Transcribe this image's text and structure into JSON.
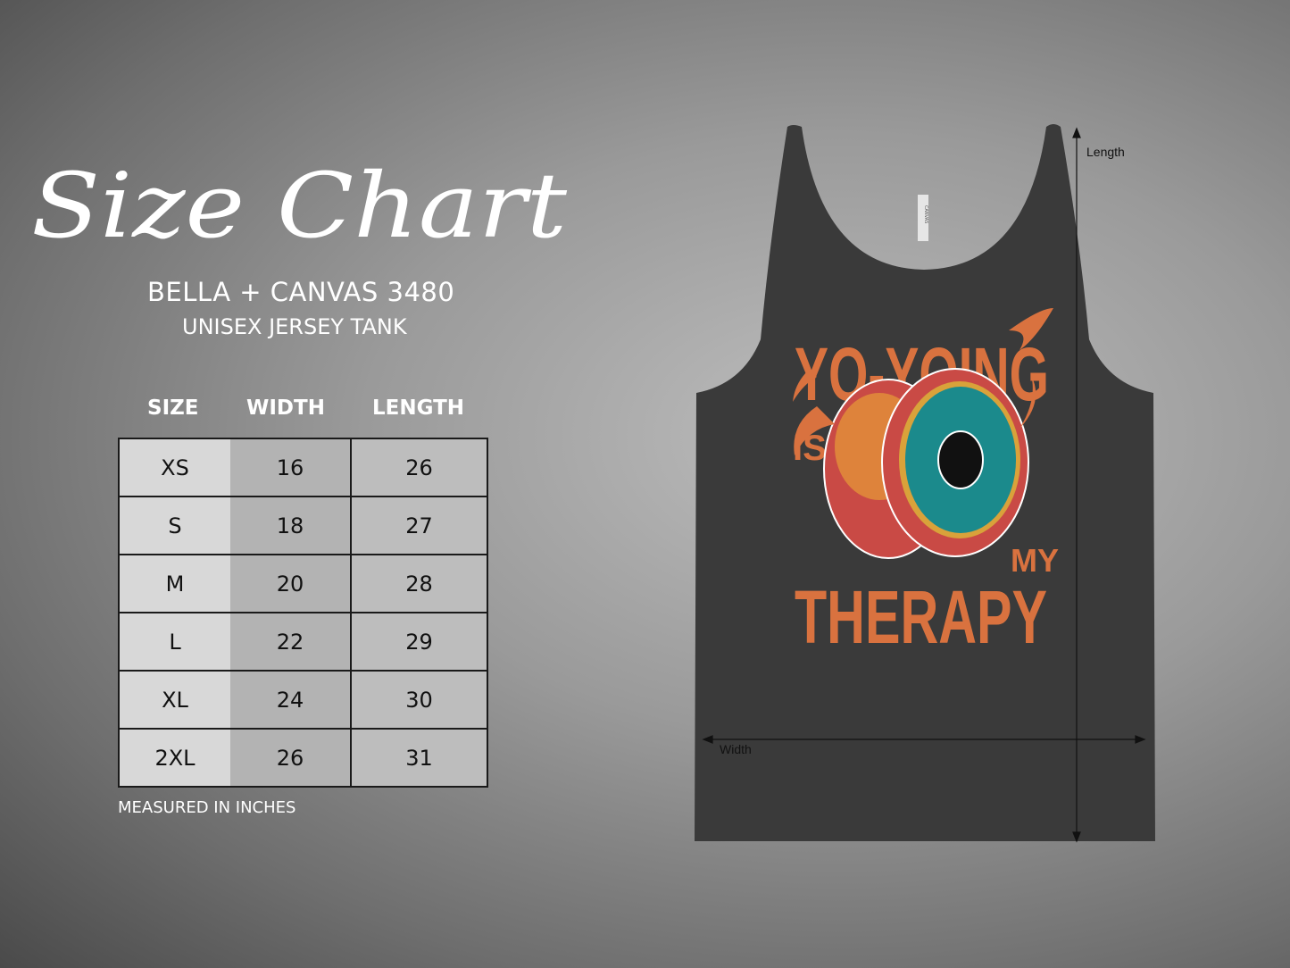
{
  "header": {
    "script_title": "Size Chart",
    "brand_model": "BELLA + CANVAS 3480",
    "product_type": "UNISEX JERSEY TANK"
  },
  "table": {
    "columns": [
      "SIZE",
      "WIDTH",
      "LENGTH"
    ],
    "rows": [
      [
        "XS",
        "16",
        "26"
      ],
      [
        "S",
        "18",
        "27"
      ],
      [
        "M",
        "20",
        "28"
      ],
      [
        "L",
        "22",
        "29"
      ],
      [
        "XL",
        "24",
        "30"
      ],
      [
        "2XL",
        "26",
        "31"
      ]
    ]
  },
  "footnote": "MEASURED IN INCHES",
  "garment": {
    "design_lines": [
      "YO-YOING",
      "IS",
      "MY",
      "THERAPY"
    ],
    "tag_text": "CANVAS",
    "length_label": "Length",
    "width_label": "Width",
    "colors": {
      "fabric": "#3a3a3a",
      "print_orange": "#d9723f",
      "teal": "#1b8a8c",
      "red": "#c94a45"
    }
  }
}
